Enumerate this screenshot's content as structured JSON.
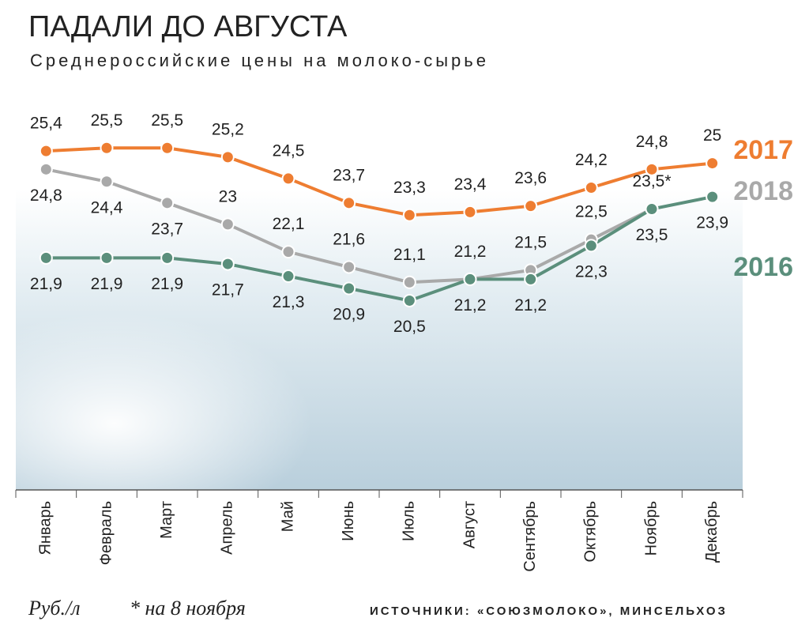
{
  "chart_data": {
    "type": "line",
    "title": "ПАДАЛИ ДО АВГУСТА",
    "subtitle": "Среднероссийские цены на молоко-сырье",
    "categories": [
      "Январь",
      "Февраль",
      "Март",
      "Апрель",
      "Май",
      "Июнь",
      "Июль",
      "Август",
      "Сентябрь",
      "Октябрь",
      "Ноябрь",
      "Декабрь"
    ],
    "series": [
      {
        "name": "2017",
        "color": "#ee7d31",
        "values": [
          25.4,
          25.5,
          25.5,
          25.2,
          24.5,
          23.7,
          23.3,
          23.4,
          23.6,
          24.2,
          24.8,
          25
        ],
        "value_labels": [
          "25,4",
          "25,5",
          "25,5",
          "25,2",
          "24,5",
          "23,7",
          "23,3",
          "23,4",
          "23,6",
          "24,2",
          "24,8",
          "25"
        ]
      },
      {
        "name": "2018",
        "color": "#a9a9a9",
        "values": [
          24.8,
          24.4,
          23.7,
          23,
          22.1,
          21.6,
          21.1,
          21.2,
          21.5,
          22.5,
          23.5,
          null
        ],
        "value_labels": [
          "24,8",
          "24,4",
          "23,7",
          "23",
          "22,1",
          "21,6",
          "21,1",
          "21,2",
          "21,5",
          "22,5",
          "23,5*",
          null
        ]
      },
      {
        "name": "2016",
        "color": "#5b8f7c",
        "values": [
          21.9,
          21.9,
          21.9,
          21.7,
          21.3,
          20.9,
          20.5,
          21.2,
          21.2,
          22.3,
          23.5,
          23.9
        ],
        "value_labels": [
          "21,9",
          "21,9",
          "21,9",
          "21,7",
          "21,3",
          "20,9",
          "20,5",
          "21,2",
          "21,2",
          "22,3",
          "23,5",
          "23,9"
        ]
      }
    ],
    "ylim": [
      14.3,
      27.5
    ],
    "y_unit": "Руб./л",
    "footnote": "* на 8 ноября",
    "source": "ИСТОЧНИКИ: «СОЮЗМОЛОКО», МИНСЕЛЬХОЗ"
  }
}
